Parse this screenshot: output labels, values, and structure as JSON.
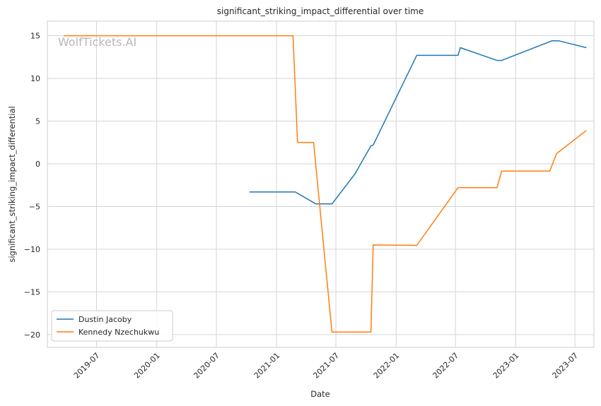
{
  "chart_data": {
    "type": "line",
    "title": "significant_striking_impact_differential over time",
    "xlabel": "Date",
    "ylabel": "significant_striking_impact_differential",
    "watermark": "WolfTickets.AI",
    "x_type": "date",
    "xlim": [
      "2019-02-01",
      "2023-08-28"
    ],
    "ylim": [
      -21.5,
      16.7
    ],
    "x_ticks": [
      "2019-07-01",
      "2020-01-01",
      "2020-07-01",
      "2021-01-01",
      "2021-07-01",
      "2022-01-01",
      "2022-07-01",
      "2023-01-01",
      "2023-07-01"
    ],
    "x_tick_labels": [
      "2019-07",
      "2020-01",
      "2020-07",
      "2021-01",
      "2021-07",
      "2022-01",
      "2022-07",
      "2023-01",
      "2023-07"
    ],
    "y_ticks": [
      15,
      10,
      5,
      0,
      -5,
      -10,
      -15,
      -20
    ],
    "y_tick_labels": [
      "15",
      "10",
      "5",
      "0",
      "−5",
      "−10",
      "−15",
      "−20"
    ],
    "grid": true,
    "legend_position": "lower-left",
    "series": [
      {
        "name": "Dustin Jacoby",
        "color": "#1f77b4",
        "x": [
          "2020-10-10",
          "2021-02-27",
          "2021-05-01",
          "2021-06-19",
          "2021-08-28",
          "2021-10-16",
          "2021-10-23",
          "2022-03-05",
          "2022-07-09",
          "2022-07-16",
          "2022-11-05",
          "2022-11-19",
          "2023-04-22",
          "2023-05-13",
          "2023-08-05"
        ],
        "y": [
          -3.3,
          -3.3,
          -4.7,
          -4.7,
          -1.2,
          2.1,
          2.2,
          12.7,
          12.7,
          13.6,
          12.1,
          12.1,
          14.4,
          14.4,
          13.6
        ]
      },
      {
        "name": "Kennedy Nzechukwu",
        "color": "#ff7f0e",
        "x": [
          "2019-03-23",
          "2021-02-20",
          "2021-03-06",
          "2021-04-24",
          "2021-06-19",
          "2021-10-16",
          "2021-10-23",
          "2022-03-05",
          "2022-07-09",
          "2022-11-05",
          "2022-11-19",
          "2023-04-15",
          "2023-05-06",
          "2023-08-05"
        ],
        "y": [
          15,
          15,
          2.5,
          2.5,
          -19.7,
          -19.7,
          -9.5,
          -9.55,
          -2.8,
          -2.8,
          -0.85,
          -0.85,
          1.2,
          3.9
        ]
      }
    ]
  }
}
